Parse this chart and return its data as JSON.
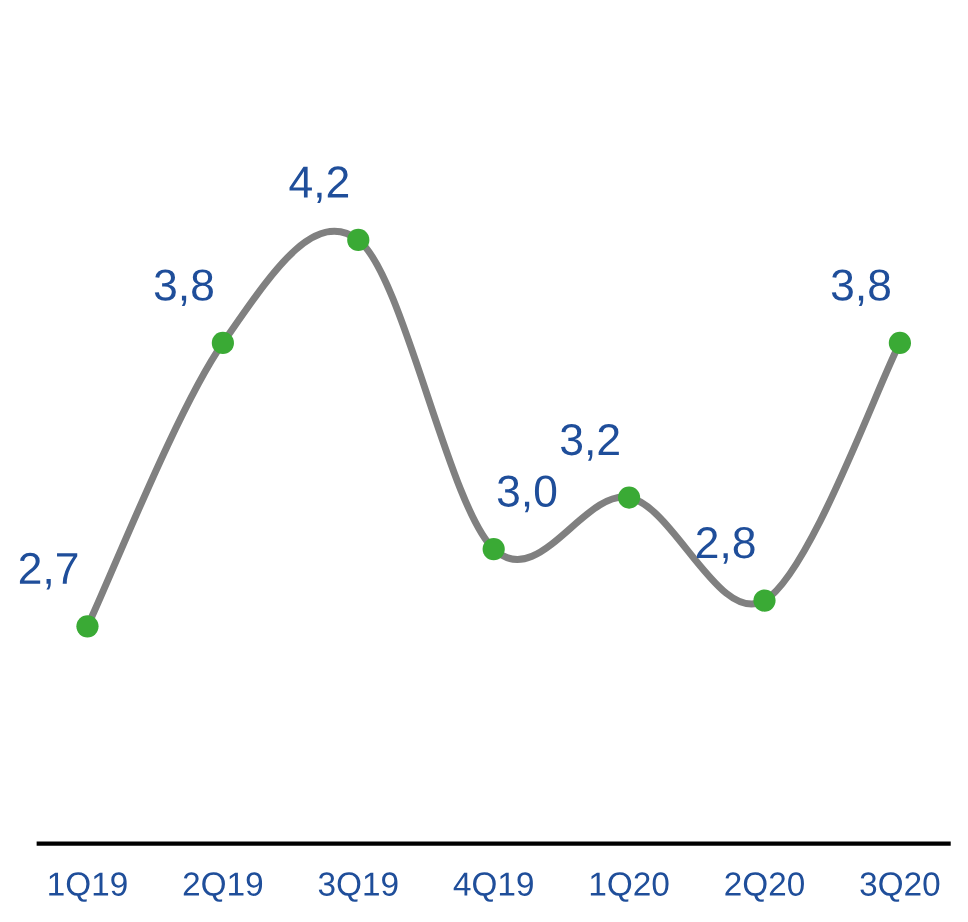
{
  "chart_data": {
    "type": "line",
    "categories": [
      "1Q19",
      "2Q19",
      "3Q19",
      "4Q19",
      "1Q20",
      "2Q20",
      "3Q20"
    ],
    "series": [
      {
        "color": "#808080",
        "values": [
          2.7,
          3.8,
          4.2,
          3.0,
          3.2,
          2.8,
          3.8
        ],
        "colors": [
          "#3aaa35",
          "#3aaa35",
          "#3aaa35",
          "#3aaa35",
          "#3aaa35",
          "#3aaa35",
          "#3aaa35"
        ],
        "value_labels": [
          "2,7",
          "3,8",
          "4,2",
          "3,0",
          "3,2",
          "2,8",
          "3,8"
        ]
      }
    ],
    "marker": "circle",
    "line_style": "solid",
    "grid": false,
    "legend": false,
    "tick_labels": "x"
  }
}
